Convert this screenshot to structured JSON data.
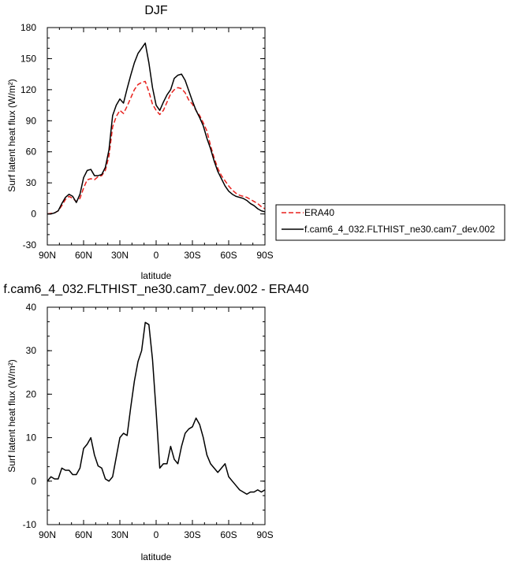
{
  "chart_data": [
    {
      "type": "line",
      "title": "DJF",
      "xlabel": "latitude",
      "ylabel": "Surf latent heat flux (W/m²)",
      "xlim": [
        90,
        -90
      ],
      "ylim": [
        -30,
        180
      ],
      "xticks": [
        90,
        60,
        30,
        0,
        -30,
        -60,
        -90
      ],
      "xtick_labels": [
        "90N",
        "60N",
        "30N",
        "0",
        "30S",
        "60S",
        "90S"
      ],
      "yticks": [
        -30,
        0,
        30,
        60,
        90,
        120,
        150,
        180
      ],
      "ytick_labels": [
        "-30",
        "0",
        "30",
        "60",
        "90",
        "120",
        "150",
        "180"
      ],
      "legend_position": "right",
      "x": [
        90,
        87,
        84,
        81,
        78,
        75,
        72,
        69,
        66,
        63,
        60,
        57,
        54,
        51,
        48,
        45,
        42,
        39,
        36,
        33,
        30,
        27,
        24,
        21,
        18,
        15,
        12,
        9,
        6,
        3,
        0,
        -3,
        -6,
        -9,
        -12,
        -15,
        -18,
        -21,
        -24,
        -27,
        -30,
        -33,
        -36,
        -39,
        -42,
        -45,
        -48,
        -51,
        -54,
        -57,
        -60,
        -63,
        -66,
        -69,
        -72,
        -75,
        -78,
        -81,
        -84,
        -87,
        -90
      ],
      "series": [
        {
          "name": "ERA40",
          "color": "#e8211d",
          "dash": "dashed",
          "values": [
            0,
            0.5,
            1,
            3,
            8,
            14,
            17,
            15,
            12,
            15,
            25,
            33,
            34,
            33,
            36,
            37,
            42,
            56,
            84,
            94,
            100,
            97,
            104,
            112,
            120,
            125,
            127,
            128,
            118,
            106,
            100,
            96,
            100,
            108,
            116,
            120,
            122,
            121,
            117,
            110,
            106,
            100,
            95,
            88,
            80,
            66,
            54,
            44,
            37,
            32,
            27,
            23,
            20,
            18,
            17,
            16,
            14,
            12,
            10,
            7,
            5
          ]
        },
        {
          "name": "f.cam6_4_032.FLTHIST_ne30.cam7_dev.002",
          "color": "#000000",
          "dash": "solid",
          "values": [
            0,
            0,
            1,
            3,
            10,
            16,
            19,
            17,
            11,
            19,
            35,
            42,
            43,
            37,
            37,
            38,
            45,
            62,
            95,
            105,
            111,
            107,
            121,
            134,
            146,
            155,
            160,
            165,
            146,
            122,
            105,
            100,
            108,
            115,
            120,
            131,
            134,
            135,
            129,
            119,
            109,
            100,
            93,
            85,
            73,
            63,
            51,
            41,
            34,
            27,
            22,
            19,
            17,
            16,
            15,
            13,
            10,
            8,
            5,
            3,
            2
          ]
        }
      ]
    },
    {
      "type": "line",
      "title": "f.cam6_4_032.FLTHIST_ne30.cam7_dev.002 - ERA40",
      "xlabel": "latitude",
      "ylabel": "Surf latent heat flux (W/m²)",
      "xlim": [
        90,
        -90
      ],
      "ylim": [
        -10,
        40
      ],
      "xticks": [
        90,
        60,
        30,
        0,
        -30,
        -60,
        -90
      ],
      "xtick_labels": [
        "90N",
        "60N",
        "30N",
        "0",
        "30S",
        "60S",
        "90S"
      ],
      "yticks": [
        -10,
        0,
        10,
        20,
        30,
        40
      ],
      "ytick_labels": [
        "-10",
        "0",
        "10",
        "20",
        "30",
        "40"
      ],
      "x": [
        90,
        87,
        84,
        81,
        78,
        75,
        72,
        69,
        66,
        63,
        60,
        57,
        54,
        51,
        48,
        45,
        42,
        39,
        36,
        33,
        30,
        27,
        24,
        21,
        18,
        15,
        12,
        9,
        6,
        3,
        0,
        -3,
        -6,
        -9,
        -12,
        -15,
        -18,
        -21,
        -24,
        -27,
        -30,
        -33,
        -36,
        -39,
        -42,
        -45,
        -48,
        -51,
        -54,
        -57,
        -60,
        -63,
        -66,
        -69,
        -72,
        -75,
        -78,
        -81,
        -84,
        -87,
        -90
      ],
      "series": [
        {
          "color": "#000000",
          "values": [
            0,
            1,
            0.5,
            0.5,
            3,
            2.5,
            2.5,
            1.5,
            1.5,
            3,
            7.5,
            8.5,
            10,
            6,
            3.5,
            3,
            0.5,
            0,
            1,
            5.5,
            10,
            11,
            10.5,
            17,
            23,
            27.5,
            30,
            36.5,
            36,
            28,
            16,
            3,
            4,
            4,
            8,
            5,
            4,
            8,
            11,
            12,
            12.5,
            14.5,
            13,
            10,
            6,
            4,
            3,
            2,
            3,
            4,
            1,
            0,
            -1,
            -2,
            -2.5,
            -3,
            -2.5,
            -2.5,
            -2,
            -2.5,
            -2
          ]
        }
      ]
    }
  ]
}
